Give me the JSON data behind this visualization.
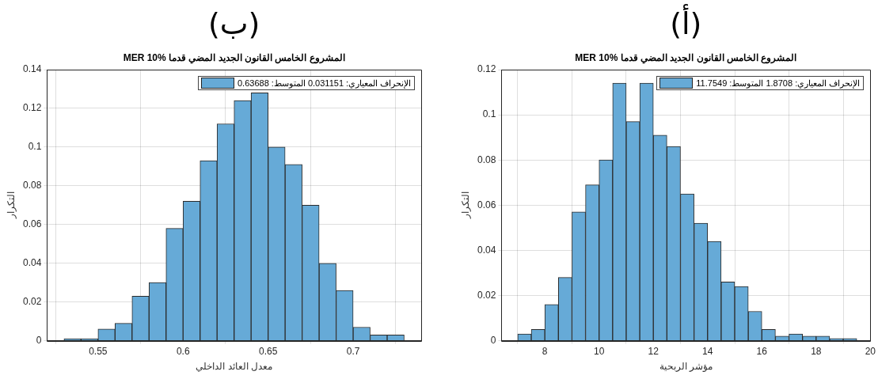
{
  "chart_data": [
    {
      "type": "histogram",
      "title": "المشروع الخامس القانون الجديد المضي قدما MER 10%",
      "xlabel": "معدل العائد الداخلي",
      "ylabel": "التكرار",
      "annotations": [
        "(ب)"
      ],
      "bins": [
        0.53,
        0.54,
        0.55,
        0.56,
        0.57,
        0.58,
        0.59,
        0.6,
        0.61,
        0.62,
        0.63,
        0.64,
        0.65,
        0.66,
        0.67,
        0.68,
        0.69,
        0.7,
        0.71,
        0.72,
        0.73
      ],
      "series": [
        {
          "name": "الإنحراف المعياري: 0.031151 المتوسط: 0.63688",
          "color": "#66aad7",
          "values": [
            0.001,
            0.001,
            0.006,
            0.009,
            0.023,
            0.03,
            0.058,
            0.072,
            0.093,
            0.112,
            0.124,
            0.128,
            0.1,
            0.091,
            0.07,
            0.04,
            0.026,
            0.007,
            0.003,
            0.003
          ]
        }
      ],
      "xlim": [
        0.52,
        0.74
      ],
      "xticks": [
        0.55,
        0.6,
        0.65,
        0.7
      ],
      "ylim": [
        0,
        0.14
      ],
      "yticks": [
        0,
        0.02,
        0.04,
        0.06,
        0.08,
        0.1,
        0.12,
        0.14
      ],
      "grid": true,
      "legend": "top right"
    },
    {
      "type": "histogram",
      "title": "المشروع الخامس القانون الجديد المضي قدما MER 10%",
      "xlabel": "مؤشر الربحية",
      "ylabel": "التكرار",
      "annotations": [
        "(أ)"
      ],
      "bins": [
        7,
        7.5,
        8,
        8.5,
        9,
        9.5,
        10,
        10.5,
        11,
        11.5,
        12,
        12.5,
        13,
        13.5,
        14,
        14.5,
        15,
        15.5,
        16,
        16.5,
        17,
        17.5,
        18,
        18.5,
        19,
        19.5
      ],
      "series": [
        {
          "name": "الإنحراف المعياري: 1.8708 المتوسط: 11.7549",
          "color": "#66aad7",
          "values": [
            0.003,
            0.005,
            0.016,
            0.028,
            0.057,
            0.069,
            0.08,
            0.114,
            0.097,
            0.114,
            0.091,
            0.086,
            0.065,
            0.052,
            0.044,
            0.026,
            0.024,
            0.013,
            0.005,
            0.002,
            0.003,
            0.002,
            0.002,
            0.001,
            0.001
          ]
        }
      ],
      "xlim": [
        6.4,
        20
      ],
      "xticks": [
        8,
        10,
        12,
        14,
        16,
        18,
        20
      ],
      "ylim": [
        0,
        0.12
      ],
      "yticks": [
        0,
        0.02,
        0.04,
        0.06,
        0.08,
        0.1,
        0.12
      ],
      "grid": true,
      "legend": "top right"
    }
  ]
}
